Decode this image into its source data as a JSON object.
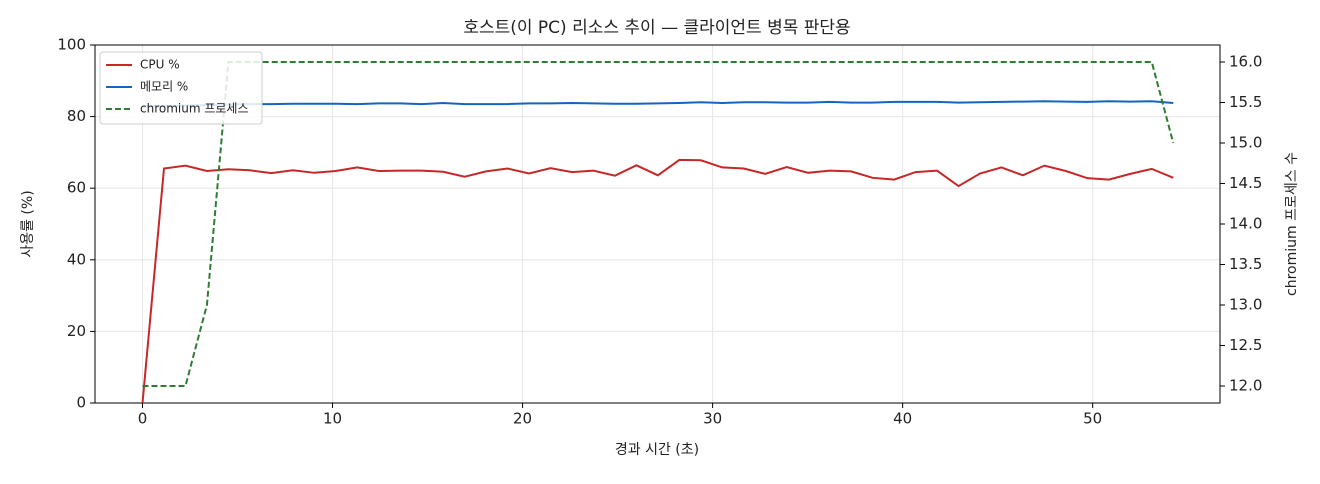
{
  "chart_data": {
    "type": "line",
    "title": "호스트(이 PC) 리소스 추이 — 클라이언트 병목 판단용",
    "x_label": "경과 시간 (초)",
    "y_label": "사용률 (%)",
    "y2_label": "chromium 프로세스 수",
    "x": [
      0,
      1.13,
      2.26,
      3.39,
      4.52,
      5.65,
      6.78,
      7.91,
      9.04,
      10.17,
      11.3,
      12.43,
      13.56,
      14.69,
      15.82,
      16.95,
      18.08,
      19.21,
      20.34,
      21.47,
      22.6,
      23.73,
      24.86,
      25.99,
      27.12,
      28.25,
      29.38,
      30.51,
      31.64,
      32.77,
      33.9,
      35.03,
      36.16,
      37.29,
      38.42,
      39.55,
      40.68,
      41.81,
      42.94,
      44.07,
      45.2,
      46.33,
      47.46,
      48.59,
      49.72,
      50.85,
      51.98,
      53.11,
      54.24
    ],
    "series": [
      {
        "name": "CPU %",
        "color": "#c62828",
        "values": [
          0,
          65.5,
          66.3,
          64.8,
          65.3,
          65.0,
          64.2,
          65.0,
          64.3,
          64.8,
          65.8,
          64.8,
          64.9,
          64.9,
          64.6,
          63.2,
          64.7,
          65.5,
          64.1,
          65.6,
          64.5,
          64.9,
          63.5,
          66.4,
          63.6,
          67.9,
          67.8,
          65.8,
          65.5,
          64.0,
          65.9,
          64.3,
          64.9,
          64.7,
          62.9,
          62.4,
          64.5,
          64.9,
          60.6,
          64.1,
          65.8,
          63.6,
          66.3,
          64.8,
          62.8,
          62.4,
          64.0,
          65.4,
          62.9
        ]
      },
      {
        "name": "메모리 %",
        "color": "#1565c0",
        "values": [
          82.8,
          83.0,
          83.1,
          83.2,
          83.4,
          83.5,
          83.5,
          83.6,
          83.6,
          83.6,
          83.5,
          83.7,
          83.7,
          83.5,
          83.8,
          83.5,
          83.5,
          83.5,
          83.7,
          83.7,
          83.8,
          83.7,
          83.6,
          83.6,
          83.7,
          83.8,
          84.0,
          83.8,
          84.0,
          84.0,
          83.9,
          83.9,
          84.1,
          83.9,
          83.9,
          84.1,
          84.1,
          84.1,
          83.9,
          84.0,
          84.1,
          84.2,
          84.3,
          84.2,
          84.1,
          84.3,
          84.2,
          84.3,
          83.8
        ]
      },
      {
        "name": "chromium 프로세스",
        "color": "#2e7d32",
        "axis": "y2",
        "dash": true,
        "values": [
          12,
          12,
          12,
          13,
          16,
          16,
          16,
          16,
          16,
          16,
          16,
          16,
          16,
          16,
          16,
          16,
          16,
          16,
          16,
          16,
          16,
          16,
          16,
          16,
          16,
          16,
          16,
          16,
          16,
          16,
          16,
          16,
          16,
          16,
          16,
          16,
          16,
          16,
          16,
          16,
          16,
          16,
          16,
          16,
          16,
          16,
          16,
          16,
          15
        ]
      }
    ],
    "xlim": [
      -2.5,
      56.7
    ],
    "xticks": [
      0,
      10,
      20,
      30,
      40,
      50
    ],
    "ylim": [
      0,
      100
    ],
    "yticks": [
      0,
      20,
      40,
      60,
      80,
      100
    ],
    "y2lim": [
      11.79,
      16.21
    ],
    "y2ticks": [
      {
        "value": 12,
        "label": "12.0"
      },
      {
        "value": 12.5,
        "label": "12.5"
      },
      {
        "value": 13,
        "label": "13.0"
      },
      {
        "value": 13.5,
        "label": "13.5"
      },
      {
        "value": 14,
        "label": "14.0"
      },
      {
        "value": 14.5,
        "label": "14.5"
      },
      {
        "value": 15,
        "label": "15.0"
      },
      {
        "value": 15.5,
        "label": "15.5"
      },
      {
        "value": 16,
        "label": "16.0"
      }
    ],
    "grid": true,
    "legend": "upper-left"
  }
}
